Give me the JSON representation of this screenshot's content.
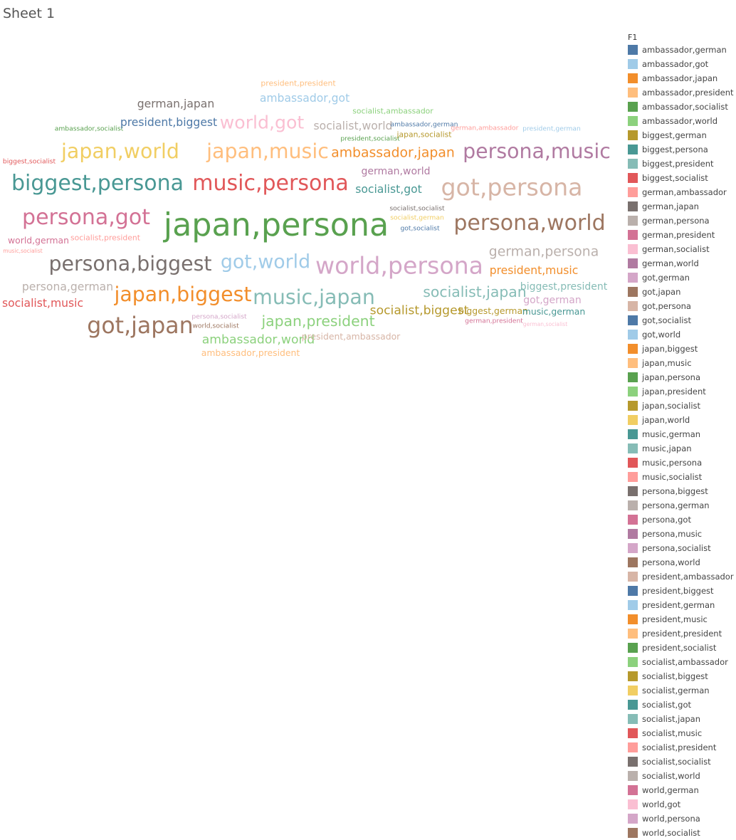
{
  "sheet": {
    "title": "Sheet 1"
  },
  "legend": {
    "title": "F1"
  },
  "chart_data": {
    "type": "word-cloud",
    "color_field": "F1",
    "categories": [
      {
        "label": "ambassador,german",
        "color": "#4e79a7"
      },
      {
        "label": "ambassador,got",
        "color": "#a0cbe8"
      },
      {
        "label": "ambassador,japan",
        "color": "#f28e2b"
      },
      {
        "label": "ambassador,president",
        "color": "#ffbe7d"
      },
      {
        "label": "ambassador,socialist",
        "color": "#59a14f"
      },
      {
        "label": "ambassador,world",
        "color": "#8cd17d"
      },
      {
        "label": "biggest,german",
        "color": "#b6992d"
      },
      {
        "label": "biggest,persona",
        "color": "#499894"
      },
      {
        "label": "biggest,president",
        "color": "#86bcb6"
      },
      {
        "label": "biggest,socialist",
        "color": "#e15759"
      },
      {
        "label": "german,ambassador",
        "color": "#ff9d9a"
      },
      {
        "label": "german,japan",
        "color": "#79706e"
      },
      {
        "label": "german,persona",
        "color": "#bab0ac"
      },
      {
        "label": "german,president",
        "color": "#d37295"
      },
      {
        "label": "german,socialist",
        "color": "#fabfd2"
      },
      {
        "label": "german,world",
        "color": "#b07aa1"
      },
      {
        "label": "got,german",
        "color": "#d4a6c8"
      },
      {
        "label": "got,japan",
        "color": "#9d7660"
      },
      {
        "label": "got,persona",
        "color": "#d7b5a6"
      },
      {
        "label": "got,socialist",
        "color": "#4e79a7"
      },
      {
        "label": "got,world",
        "color": "#a0cbe8"
      },
      {
        "label": "japan,biggest",
        "color": "#f28e2b"
      },
      {
        "label": "japan,music",
        "color": "#ffbe7d"
      },
      {
        "label": "japan,persona",
        "color": "#59a14f"
      },
      {
        "label": "japan,president",
        "color": "#8cd17d"
      },
      {
        "label": "japan,socialist",
        "color": "#b6992d"
      },
      {
        "label": "japan,world",
        "color": "#f1ce63"
      },
      {
        "label": "music,german",
        "color": "#499894"
      },
      {
        "label": "music,japan",
        "color": "#86bcb6"
      },
      {
        "label": "music,persona",
        "color": "#e15759"
      },
      {
        "label": "music,socialist",
        "color": "#ff9d9a"
      },
      {
        "label": "persona,biggest",
        "color": "#79706e"
      },
      {
        "label": "persona,german",
        "color": "#bab0ac"
      },
      {
        "label": "persona,got",
        "color": "#d37295"
      },
      {
        "label": "persona,music",
        "color": "#b07aa1"
      },
      {
        "label": "persona,socialist",
        "color": "#d4a6c8"
      },
      {
        "label": "persona,world",
        "color": "#9d7660"
      },
      {
        "label": "president,ambassador",
        "color": "#d7b5a6"
      },
      {
        "label": "president,biggest",
        "color": "#4e79a7"
      },
      {
        "label": "president,german",
        "color": "#a0cbe8"
      },
      {
        "label": "president,music",
        "color": "#f28e2b"
      },
      {
        "label": "president,president",
        "color": "#ffbe7d"
      },
      {
        "label": "president,socialist",
        "color": "#59a14f"
      },
      {
        "label": "socialist,ambassador",
        "color": "#8cd17d"
      },
      {
        "label": "socialist,biggest",
        "color": "#b6992d"
      },
      {
        "label": "socialist,german",
        "color": "#f1ce63"
      },
      {
        "label": "socialist,got",
        "color": "#499894"
      },
      {
        "label": "socialist,japan",
        "color": "#86bcb6"
      },
      {
        "label": "socialist,music",
        "color": "#e15759"
      },
      {
        "label": "socialist,president",
        "color": "#ff9d9a"
      },
      {
        "label": "socialist,socialist",
        "color": "#79706e"
      },
      {
        "label": "socialist,world",
        "color": "#bab0ac"
      },
      {
        "label": "world,german",
        "color": "#d37295"
      },
      {
        "label": "world,got",
        "color": "#fabfd2"
      },
      {
        "label": "world,persona",
        "color": "#d4a6c8"
      },
      {
        "label": "world,socialist",
        "color": "#9d7660"
      }
    ],
    "words": [
      {
        "text": "president,president",
        "size": 3
      },
      {
        "text": "ambassador,got",
        "size": 6
      },
      {
        "text": "german,japan",
        "size": 6
      },
      {
        "text": "socialist,ambassador",
        "size": 3
      },
      {
        "text": "ambassador,socialist",
        "size": 2
      },
      {
        "text": "president,biggest",
        "size": 6
      },
      {
        "text": "world,got",
        "size": 12
      },
      {
        "text": "socialist,world",
        "size": 6
      },
      {
        "text": "ambassador,german",
        "size": 2
      },
      {
        "text": "german,ambassador",
        "size": 2
      },
      {
        "text": "president,german",
        "size": 2
      },
      {
        "text": "president,socialist",
        "size": 2
      },
      {
        "text": "japan,socialist",
        "size": 3
      },
      {
        "text": "japan,world",
        "size": 14
      },
      {
        "text": "japan,music",
        "size": 14
      },
      {
        "text": "ambassador,japan",
        "size": 8
      },
      {
        "text": "persona,music",
        "size": 14
      },
      {
        "text": "biggest,socialist",
        "size": 2
      },
      {
        "text": "german,world",
        "size": 5
      },
      {
        "text": "biggest,persona",
        "size": 15
      },
      {
        "text": "music,persona",
        "size": 15
      },
      {
        "text": "socialist,got",
        "size": 6
      },
      {
        "text": "got,persona",
        "size": 17
      },
      {
        "text": "socialist,socialist",
        "size": 2
      },
      {
        "text": "socialist,german",
        "size": 2
      },
      {
        "text": "persona,got",
        "size": 15
      },
      {
        "text": "japan,persona",
        "size": 24
      },
      {
        "text": "got,socialist",
        "size": 2
      },
      {
        "text": "persona,world",
        "size": 15
      },
      {
        "text": "world,german",
        "size": 4
      },
      {
        "text": "socialist,president",
        "size": 3
      },
      {
        "text": "music,socialist",
        "size": 1
      },
      {
        "text": "persona,biggest",
        "size": 14
      },
      {
        "text": "got,world",
        "size": 13
      },
      {
        "text": "world,persona",
        "size": 17
      },
      {
        "text": "german,persona",
        "size": 8
      },
      {
        "text": "president,music",
        "size": 6
      },
      {
        "text": "persona,german",
        "size": 6
      },
      {
        "text": "japan,biggest",
        "size": 14
      },
      {
        "text": "music,japan",
        "size": 14
      },
      {
        "text": "socialist,japan",
        "size": 9
      },
      {
        "text": "biggest,president",
        "size": 5
      },
      {
        "text": "got,german",
        "size": 5
      },
      {
        "text": "socialist,music",
        "size": 6
      },
      {
        "text": "persona,socialist",
        "size": 2
      },
      {
        "text": "world,socialist",
        "size": 2
      },
      {
        "text": "japan,president",
        "size": 9
      },
      {
        "text": "socialist,biggest",
        "size": 7
      },
      {
        "text": "biggest,german",
        "size": 4
      },
      {
        "text": "music,german",
        "size": 4
      },
      {
        "text": "german,president",
        "size": 2
      },
      {
        "text": "german,socialist",
        "size": 1
      },
      {
        "text": "got,japan",
        "size": 16
      },
      {
        "text": "ambassador,world",
        "size": 7
      },
      {
        "text": "president,ambassador",
        "size": 4
      },
      {
        "text": "ambassador,president",
        "size": 4
      }
    ]
  }
}
